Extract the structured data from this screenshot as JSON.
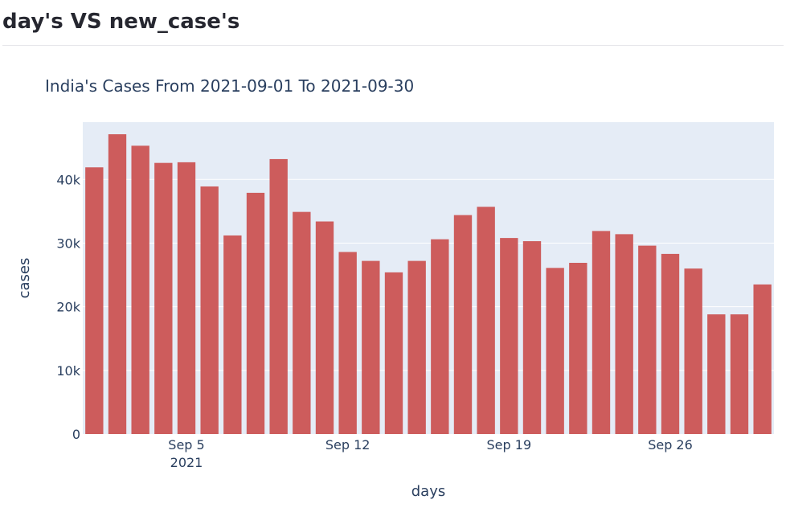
{
  "page": {
    "heading": "day's VS new_case's"
  },
  "chart_data": {
    "type": "bar",
    "title": "India's Cases From 2021-09-01 To 2021-09-30",
    "xlabel": "days",
    "ylabel": "cases",
    "x": [
      "2021-09-01",
      "2021-09-02",
      "2021-09-03",
      "2021-09-04",
      "2021-09-05",
      "2021-09-06",
      "2021-09-07",
      "2021-09-08",
      "2021-09-09",
      "2021-09-10",
      "2021-09-11",
      "2021-09-12",
      "2021-09-13",
      "2021-09-14",
      "2021-09-15",
      "2021-09-16",
      "2021-09-17",
      "2021-09-18",
      "2021-09-19",
      "2021-09-20",
      "2021-09-21",
      "2021-09-22",
      "2021-09-23",
      "2021-09-24",
      "2021-09-25",
      "2021-09-26",
      "2021-09-27",
      "2021-09-28",
      "2021-09-29",
      "2021-09-30"
    ],
    "values": [
      41900,
      47100,
      45300,
      42600,
      42700,
      38900,
      31200,
      37900,
      43200,
      34900,
      33400,
      28600,
      27200,
      25400,
      27200,
      30600,
      34400,
      35700,
      30800,
      30300,
      26100,
      26900,
      31900,
      31400,
      29600,
      28300,
      26000,
      18800,
      18800,
      23500
    ],
    "ylim": [
      0,
      49000
    ],
    "y_ticks": [
      {
        "value": 0,
        "label": "0"
      },
      {
        "value": 10000,
        "label": "10k"
      },
      {
        "value": 20000,
        "label": "20k"
      },
      {
        "value": 30000,
        "label": "30k"
      },
      {
        "value": 40000,
        "label": "40k"
      }
    ],
    "x_ticks": [
      {
        "date": "2021-09-05",
        "label": "Sep 5",
        "sublabel": "2021"
      },
      {
        "date": "2021-09-12",
        "label": "Sep 12",
        "sublabel": ""
      },
      {
        "date": "2021-09-19",
        "label": "Sep 19",
        "sublabel": ""
      },
      {
        "date": "2021-09-26",
        "label": "Sep 26",
        "sublabel": ""
      }
    ],
    "grid": true,
    "colors": {
      "bar": "#cd5c5c",
      "plot_bg": "#e5ecf6",
      "grid": "#ffffff",
      "text": "#2a3f5f"
    }
  }
}
